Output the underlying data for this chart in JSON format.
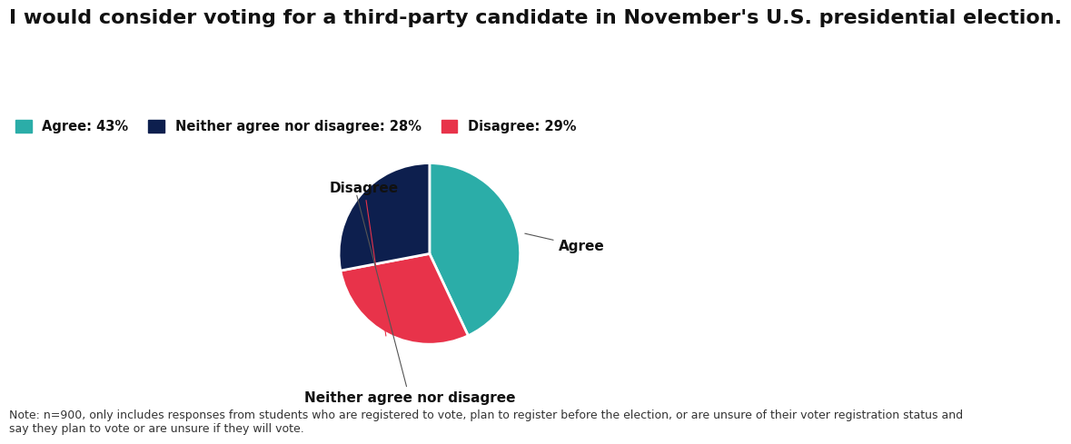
{
  "title": "I would consider voting for a third-party candidate in November's U.S. presidential election.",
  "slices": [
    43,
    29,
    28
  ],
  "slice_labels": [
    "Agree",
    "Disagree",
    "Neither agree nor disagree"
  ],
  "colors": [
    "#2BADA8",
    "#E8334A",
    "#0D1F4E"
  ],
  "legend_labels": [
    "Agree: 43%",
    "Neither agree nor disagree: 28%",
    "Disagree: 29%"
  ],
  "legend_colors": [
    "#2BADA8",
    "#0D1F4E",
    "#E8334A"
  ],
  "note": "Note: n=900, only includes responses from students who are registered to vote, plan to register before the election, or are unsure of their voter registration status and\nsay they plan to vote or are unsure if they will vote.",
  "title_fontsize": 16,
  "legend_fontsize": 10.5,
  "note_fontsize": 9,
  "label_fontsize": 11,
  "background_color": "#FFFFFF",
  "startangle": 90
}
